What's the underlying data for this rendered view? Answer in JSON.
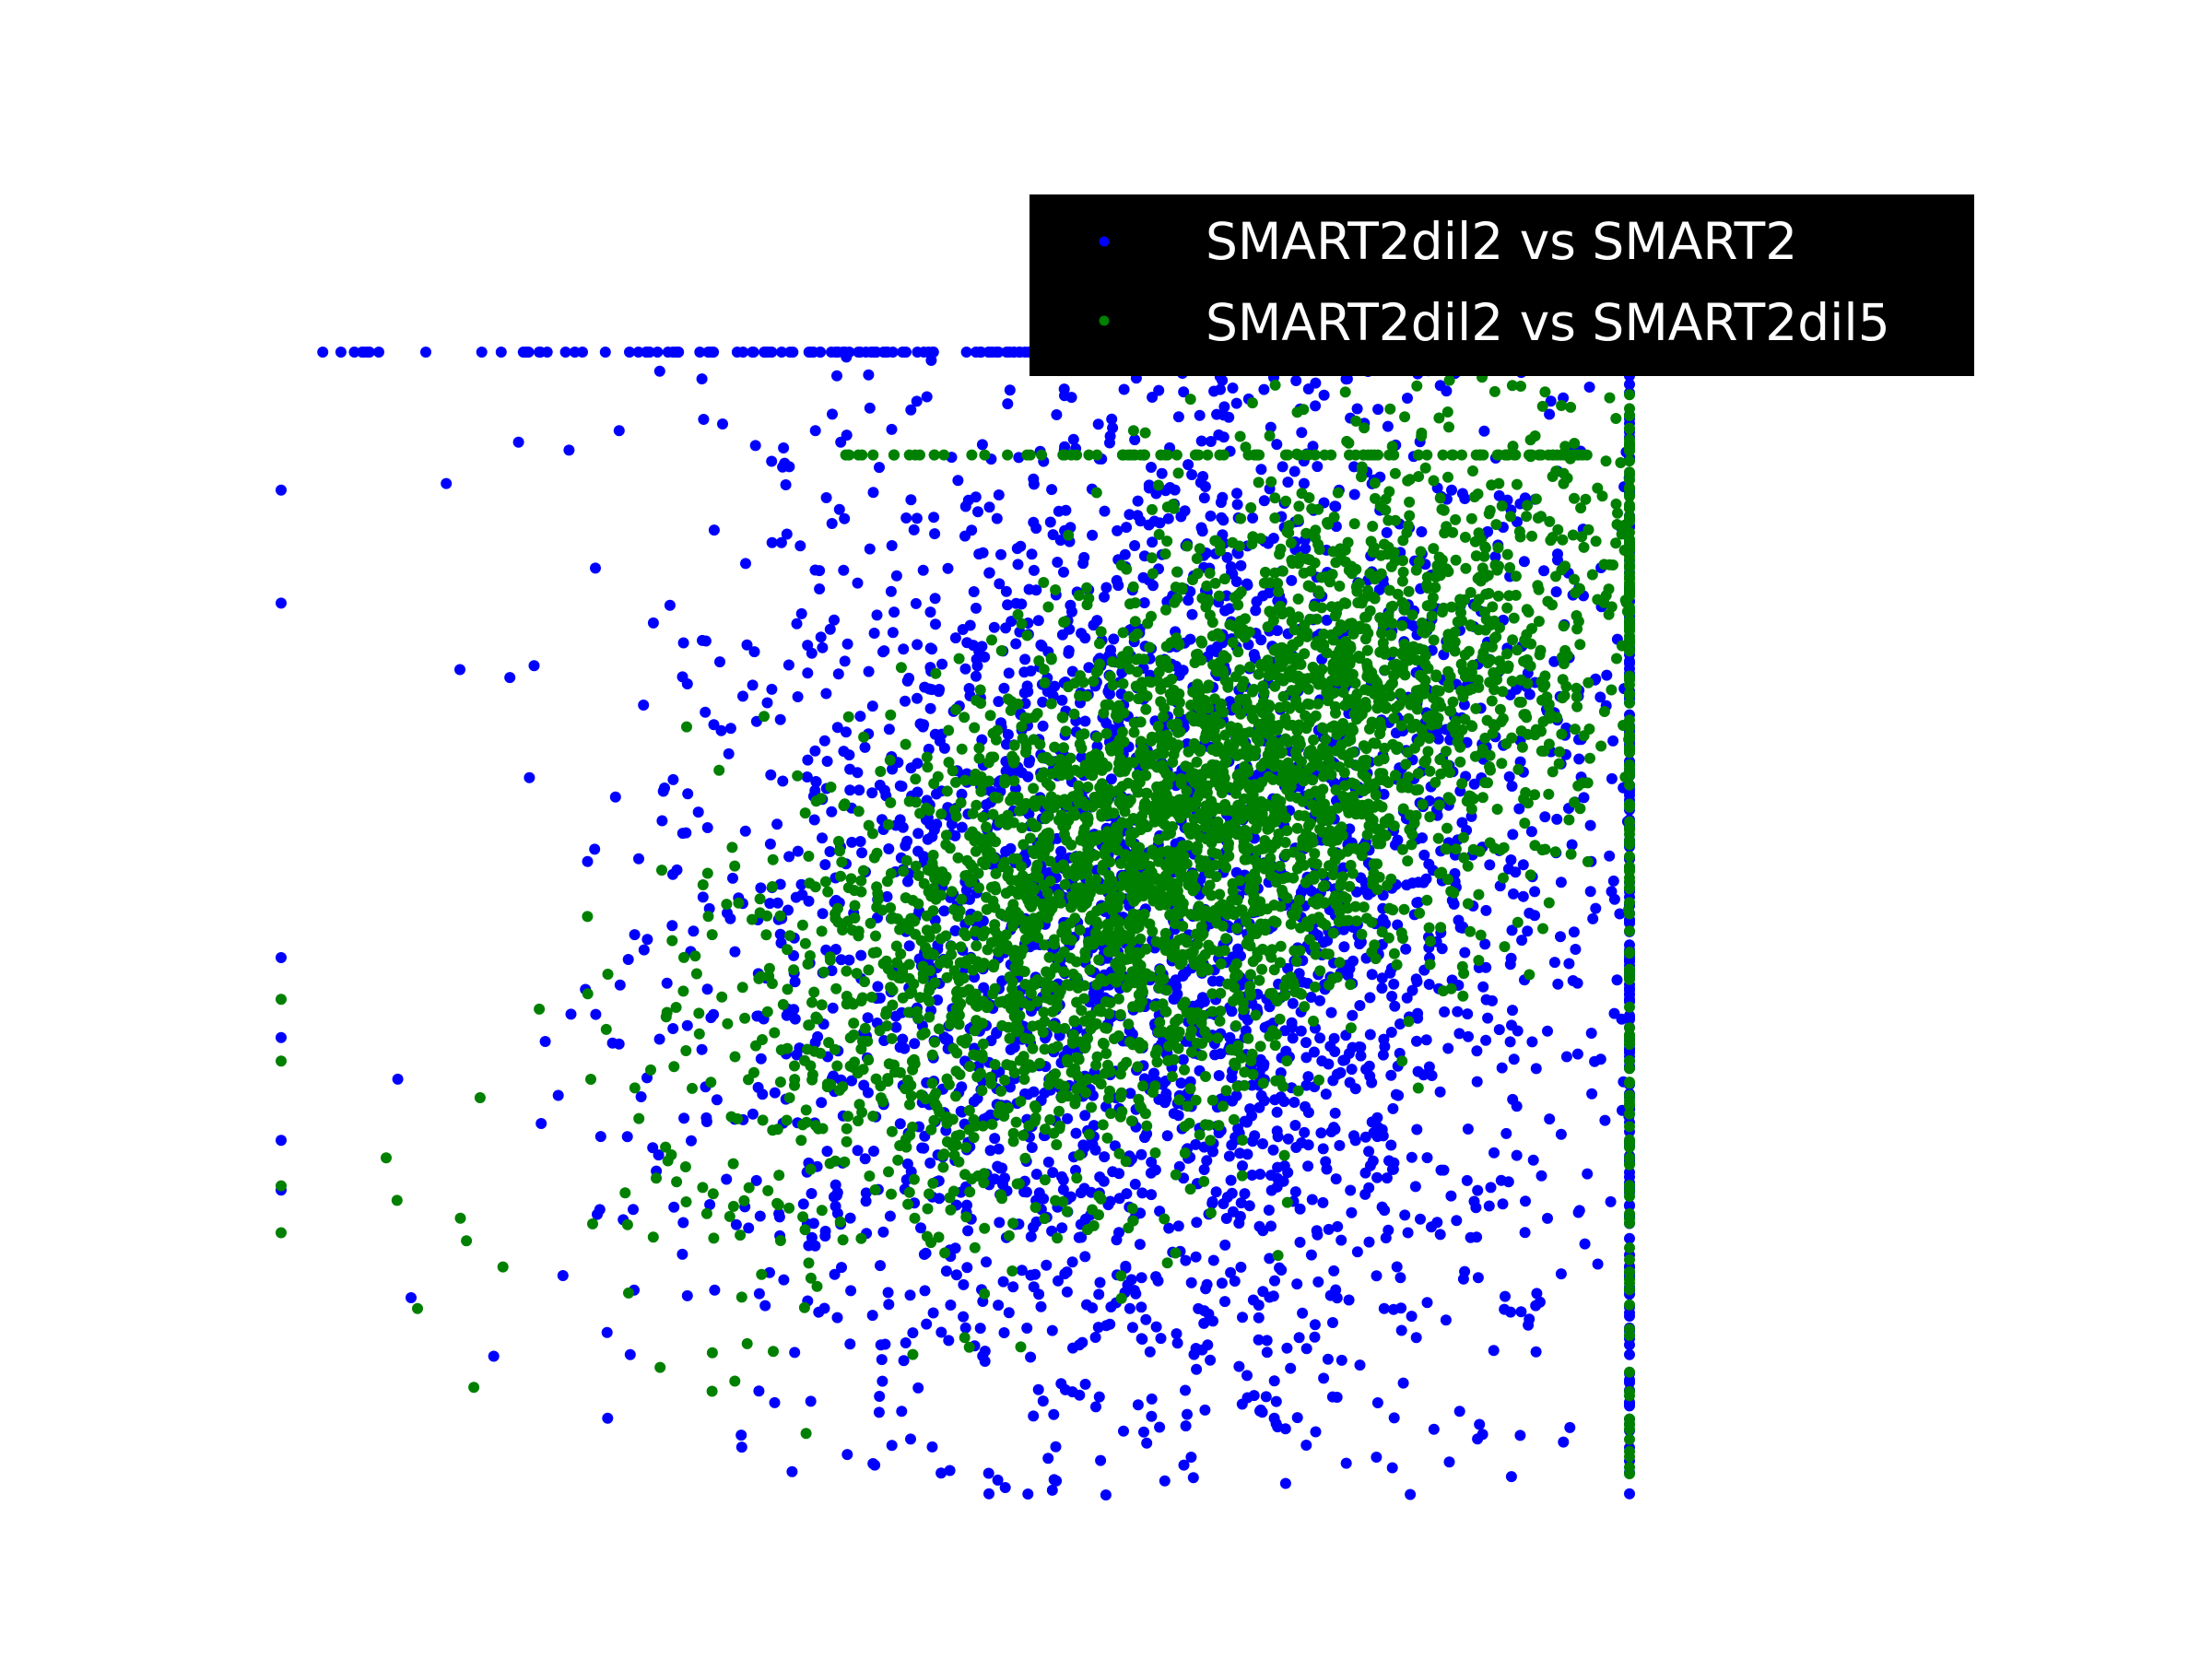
{
  "chart_data": {
    "type": "scatter",
    "title": "",
    "xlabel": "",
    "ylabel": "",
    "axes_visible": false,
    "grid": false,
    "legend_placement": "top-right",
    "legend_style": {
      "background": "#000000",
      "text_color": "#ffffff"
    },
    "xlim": [
      0,
      1
    ],
    "ylim": [
      0,
      1
    ],
    "series": [
      {
        "name": "SMART2dil2 vs SMART2",
        "color": "#0000ff",
        "description_of_distribution": "broad cloud centered near x=0.65, y=0.55; edge clip rows at y=1.0 (top) and x=1.0 (right)",
        "cluster": {
          "cx": 0.66,
          "cy": 0.52,
          "sx": 0.18,
          "sy": 0.26,
          "rho": 0.05,
          "n": 3200
        },
        "top_clip": {
          "y": 1.0,
          "x_from": 0.03,
          "x_to": 0.8,
          "n": 140
        },
        "right_clip": {
          "x": 1.0,
          "y_from": 0.0,
          "y_to": 0.92,
          "n": 120
        },
        "left_clip": {
          "x": 0.0,
          "y_from": 0.2,
          "y_to": 0.9,
          "n": 6
        }
      },
      {
        "name": "SMART2dil2 vs SMART2dil5",
        "color": "#008000",
        "description_of_distribution": "elongated positively correlated cloud centered near x=0.68, y=0.58; clip rows at y=0.91 and x=1.0",
        "cluster": {
          "cx": 0.68,
          "cy": 0.59,
          "sx": 0.16,
          "sy": 0.16,
          "rho": 0.65,
          "n": 3600
        },
        "top_clip": {
          "y": 0.91,
          "x_from": 0.4,
          "x_to": 0.97,
          "n": 110
        },
        "right_clip": {
          "x": 1.0,
          "y_from": 0.0,
          "y_to": 0.91,
          "n": 110
        },
        "left_clip": {
          "x": 0.0,
          "y_from": 0.2,
          "y_to": 0.5,
          "n": 4
        }
      }
    ]
  }
}
